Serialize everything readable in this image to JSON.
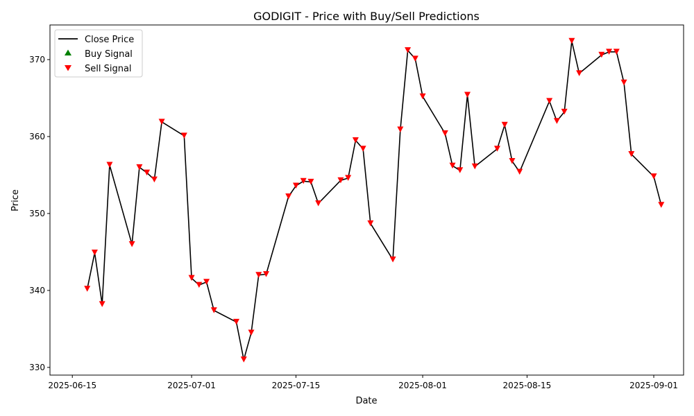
{
  "chart_data": {
    "type": "line",
    "title": "GODIGIT - Price with Buy/Sell Predictions",
    "xlabel": "Date",
    "ylabel": "Price",
    "xlim": [
      "2025-06-12",
      "2025-09-05"
    ],
    "ylim": [
      329,
      374.5
    ],
    "x_ticks": [
      "2025-06-15",
      "2025-07-01",
      "2025-07-15",
      "2025-08-01",
      "2025-08-15",
      "2025-09-01"
    ],
    "y_ticks": [
      330,
      340,
      350,
      360,
      370
    ],
    "grid": false,
    "legend": {
      "placement": "top-left",
      "entries": [
        "Close Price",
        "Buy Signal",
        "Sell Signal"
      ]
    },
    "colors": {
      "close": "#000000",
      "buy": "#008000",
      "sell": "#ff0000"
    },
    "series": [
      {
        "name": "Close Price",
        "points": [
          [
            "2025-06-17",
            340.2
          ],
          [
            "2025-06-18",
            344.9
          ],
          [
            "2025-06-19",
            338.2
          ],
          [
            "2025-06-20",
            356.3
          ],
          [
            "2025-06-23",
            346.0
          ],
          [
            "2025-06-24",
            356.0
          ],
          [
            "2025-06-25",
            355.3
          ],
          [
            "2025-06-26",
            354.4
          ],
          [
            "2025-06-27",
            361.9
          ],
          [
            "2025-06-30",
            360.1
          ],
          [
            "2025-07-01",
            341.6
          ],
          [
            "2025-07-02",
            340.7
          ],
          [
            "2025-07-03",
            341.1
          ],
          [
            "2025-07-04",
            337.4
          ],
          [
            "2025-07-07",
            335.9
          ],
          [
            "2025-07-08",
            331.0
          ],
          [
            "2025-07-09",
            334.5
          ],
          [
            "2025-07-10",
            342.0
          ],
          [
            "2025-07-11",
            342.1
          ],
          [
            "2025-07-14",
            352.2
          ],
          [
            "2025-07-15",
            353.6
          ],
          [
            "2025-07-16",
            354.2
          ],
          [
            "2025-07-17",
            354.1
          ],
          [
            "2025-07-18",
            351.3
          ],
          [
            "2025-07-21",
            354.3
          ],
          [
            "2025-07-22",
            354.6
          ],
          [
            "2025-07-23",
            359.5
          ],
          [
            "2025-07-24",
            358.4
          ],
          [
            "2025-07-25",
            348.7
          ],
          [
            "2025-07-28",
            344.0
          ],
          [
            "2025-07-29",
            360.9
          ],
          [
            "2025-07-30",
            371.2
          ],
          [
            "2025-07-31",
            370.1
          ],
          [
            "2025-08-01",
            365.2
          ],
          [
            "2025-08-04",
            360.4
          ],
          [
            "2025-08-05",
            356.2
          ],
          [
            "2025-08-06",
            355.6
          ],
          [
            "2025-08-07",
            365.4
          ],
          [
            "2025-08-08",
            356.1
          ],
          [
            "2025-08-11",
            358.4
          ],
          [
            "2025-08-12",
            361.5
          ],
          [
            "2025-08-13",
            356.8
          ],
          [
            "2025-08-14",
            355.4
          ],
          [
            "2025-08-18",
            364.6
          ],
          [
            "2025-08-19",
            362.0
          ],
          [
            "2025-08-20",
            363.2
          ],
          [
            "2025-08-21",
            372.4
          ],
          [
            "2025-08-22",
            368.2
          ],
          [
            "2025-08-25",
            370.6
          ],
          [
            "2025-08-26",
            371.0
          ],
          [
            "2025-08-27",
            371.0
          ],
          [
            "2025-08-28",
            367.0
          ],
          [
            "2025-08-29",
            357.7
          ],
          [
            "2025-09-01",
            354.8
          ],
          [
            "2025-09-02",
            351.1
          ]
        ]
      },
      {
        "name": "Buy Signal",
        "points": []
      },
      {
        "name": "Sell Signal",
        "points": [
          [
            "2025-06-17",
            340.2
          ],
          [
            "2025-06-18",
            344.9
          ],
          [
            "2025-06-19",
            338.2
          ],
          [
            "2025-06-20",
            356.3
          ],
          [
            "2025-06-23",
            346.0
          ],
          [
            "2025-06-24",
            356.0
          ],
          [
            "2025-06-25",
            355.3
          ],
          [
            "2025-06-26",
            354.4
          ],
          [
            "2025-06-27",
            361.9
          ],
          [
            "2025-06-30",
            360.1
          ],
          [
            "2025-07-01",
            341.6
          ],
          [
            "2025-07-02",
            340.7
          ],
          [
            "2025-07-03",
            341.1
          ],
          [
            "2025-07-04",
            337.4
          ],
          [
            "2025-07-07",
            335.9
          ],
          [
            "2025-07-08",
            331.0
          ],
          [
            "2025-07-09",
            334.5
          ],
          [
            "2025-07-10",
            342.0
          ],
          [
            "2025-07-11",
            342.1
          ],
          [
            "2025-07-14",
            352.2
          ],
          [
            "2025-07-15",
            353.6
          ],
          [
            "2025-07-16",
            354.2
          ],
          [
            "2025-07-17",
            354.1
          ],
          [
            "2025-07-18",
            351.3
          ],
          [
            "2025-07-21",
            354.3
          ],
          [
            "2025-07-22",
            354.6
          ],
          [
            "2025-07-23",
            359.5
          ],
          [
            "2025-07-24",
            358.4
          ],
          [
            "2025-07-25",
            348.7
          ],
          [
            "2025-07-28",
            344.0
          ],
          [
            "2025-07-29",
            360.9
          ],
          [
            "2025-07-30",
            371.2
          ],
          [
            "2025-07-31",
            370.1
          ],
          [
            "2025-08-01",
            365.2
          ],
          [
            "2025-08-04",
            360.4
          ],
          [
            "2025-08-05",
            356.2
          ],
          [
            "2025-08-06",
            355.6
          ],
          [
            "2025-08-07",
            365.4
          ],
          [
            "2025-08-08",
            356.1
          ],
          [
            "2025-08-11",
            358.4
          ],
          [
            "2025-08-12",
            361.5
          ],
          [
            "2025-08-13",
            356.8
          ],
          [
            "2025-08-14",
            355.4
          ],
          [
            "2025-08-18",
            364.6
          ],
          [
            "2025-08-19",
            362.0
          ],
          [
            "2025-08-20",
            363.2
          ],
          [
            "2025-08-21",
            372.4
          ],
          [
            "2025-08-22",
            368.2
          ],
          [
            "2025-08-25",
            370.6
          ],
          [
            "2025-08-26",
            371.0
          ],
          [
            "2025-08-27",
            371.0
          ],
          [
            "2025-08-28",
            367.0
          ],
          [
            "2025-08-29",
            357.7
          ],
          [
            "2025-09-01",
            354.8
          ],
          [
            "2025-09-02",
            351.1
          ]
        ]
      }
    ]
  }
}
